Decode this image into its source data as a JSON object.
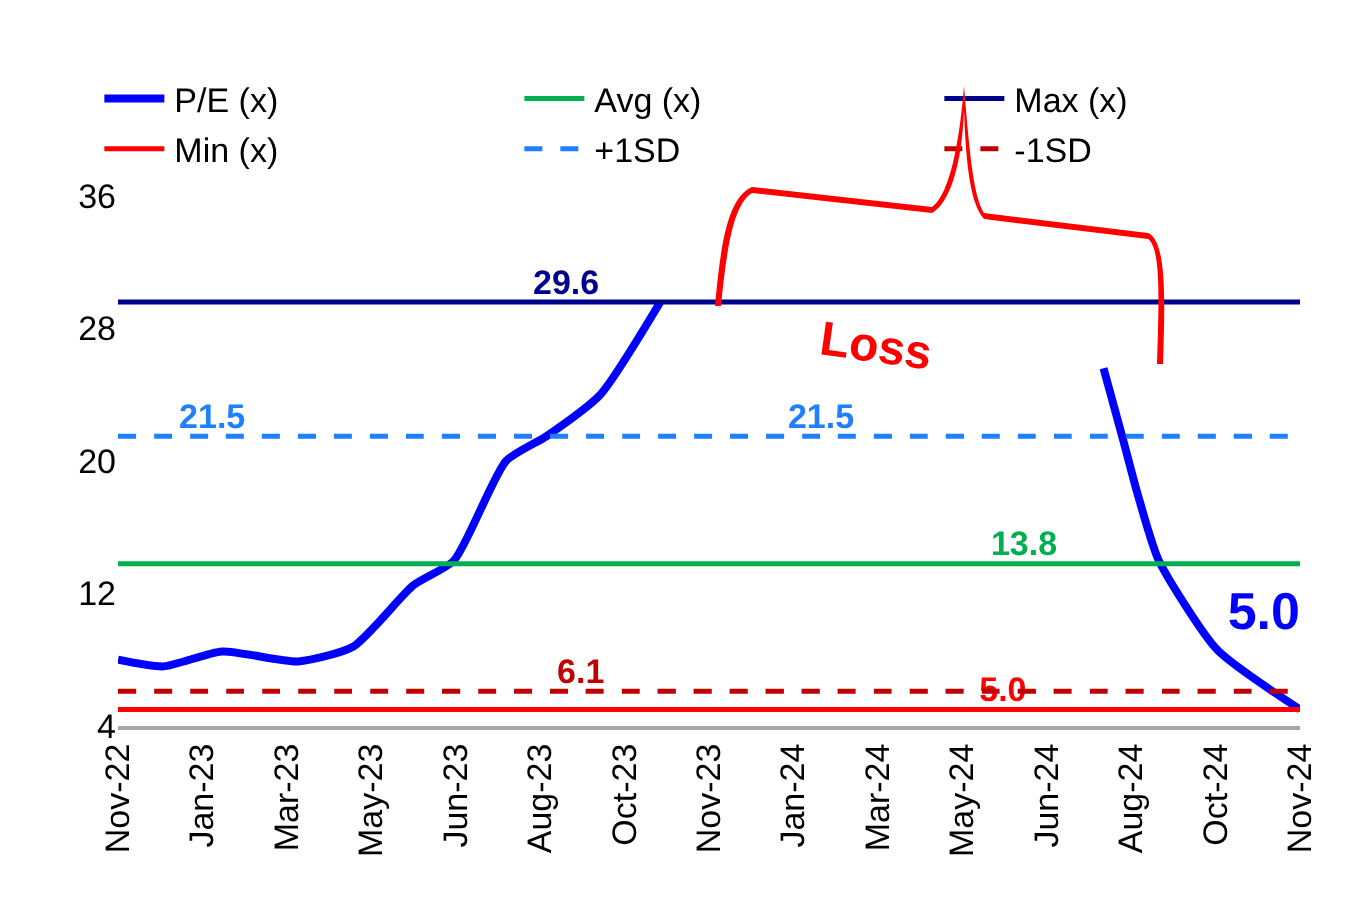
{
  "chart_data": {
    "type": "line",
    "ylim": [
      4,
      36
    ],
    "yticks": [
      4,
      12,
      20,
      28,
      36
    ],
    "xlim": [
      "2022-11-30",
      "2024-11-27"
    ],
    "xticks": [
      {
        "value": "2022-11-30",
        "label": "Nov-22"
      },
      {
        "value": "2023-01-21",
        "label": "Jan-23"
      },
      {
        "value": "2023-03-14",
        "label": "Mar-23"
      },
      {
        "value": "2023-05-05",
        "label": "May-23"
      },
      {
        "value": "2023-06-26",
        "label": "Jun-23"
      },
      {
        "value": "2023-08-17",
        "label": "Aug-23"
      },
      {
        "value": "2023-10-08",
        "label": "Oct-23"
      },
      {
        "value": "2023-11-29",
        "label": "Nov-23"
      },
      {
        "value": "2024-01-20",
        "label": "Jan-24"
      },
      {
        "value": "2024-03-12",
        "label": "Mar-24"
      },
      {
        "value": "2024-05-03",
        "label": "May-24"
      },
      {
        "value": "2024-06-24",
        "label": "Jun-24"
      },
      {
        "value": "2024-08-15",
        "label": "Aug-24"
      },
      {
        "value": "2024-10-06",
        "label": "Oct-24"
      },
      {
        "value": "2024-11-27",
        "label": "Nov-24"
      }
    ],
    "grid": false,
    "legend": "top",
    "marker": "none",
    "annotations": [
      "Loss"
    ],
    "series": [
      {
        "name": "P/E (x)",
        "color": "#0000ff",
        "line_style": "solid",
        "x": [
          "2022-11-30",
          "2022-12-28",
          "2023-02-02",
          "2023-03-21",
          "2023-04-24",
          "2023-05-31",
          "2023-06-25",
          "2023-07-27",
          "2023-08-21",
          "2023-09-23",
          "2023-10-30",
          "2024-03-01",
          "2024-07-29",
          "2024-08-10",
          "2024-08-19",
          "2024-09-01",
          "2024-10-07",
          "2024-11-27"
        ],
        "values": [
          8.0,
          7.6,
          8.5,
          7.9,
          8.8,
          12.5,
          14.0,
          20.0,
          21.5,
          24.0,
          29.6,
          null,
          25.6,
          21.3,
          18.0,
          14.0,
          8.6,
          5.0
        ],
        "value_labels": [
          null,
          null,
          null,
          null,
          null,
          null,
          null,
          null,
          null,
          null,
          null,
          null,
          null,
          null,
          null,
          null,
          null,
          "5.0"
        ]
      },
      {
        "name": "Avg (x)",
        "color": "#00b050",
        "line_style": "solid",
        "x": [
          "2022-11-30",
          "2024-06-10",
          "2024-11-27"
        ],
        "values": [
          13.8,
          13.8,
          13.8
        ],
        "value_labels": [
          null,
          "13.8",
          null
        ]
      },
      {
        "name": "Max (x)",
        "color": "#000090",
        "line_style": "solid",
        "x": [
          "2022-11-30",
          "2023-09-02",
          "2024-11-27"
        ],
        "values": [
          29.6,
          29.6,
          29.6
        ],
        "value_labels": [
          null,
          "29.6",
          null
        ]
      },
      {
        "name": "Min (x)",
        "color": "#ff0000",
        "line_style": "solid",
        "x": [
          "2022-11-30",
          "2024-05-28",
          "2024-11-27"
        ],
        "values": [
          5.0,
          5.0,
          5.0
        ],
        "value_labels": [
          null,
          "5.0",
          null
        ]
      },
      {
        "name": "+1SD",
        "color": "#1f7fff",
        "line_style": "dashed",
        "x": [
          "2022-11-30",
          "2023-01-27",
          "2024-02-06",
          "2024-11-27"
        ],
        "values": [
          21.5,
          21.5,
          21.5,
          21.5
        ],
        "value_labels": [
          null,
          "21.5",
          "21.5",
          null
        ]
      },
      {
        "name": "-1SD",
        "color": "#c00000",
        "line_style": "dashed",
        "x": [
          "2022-11-30",
          "2023-09-11",
          "2024-11-27"
        ],
        "values": [
          6.1,
          6.1,
          6.1
        ],
        "value_labels": [
          null,
          "6.1",
          null
        ]
      }
    ]
  }
}
